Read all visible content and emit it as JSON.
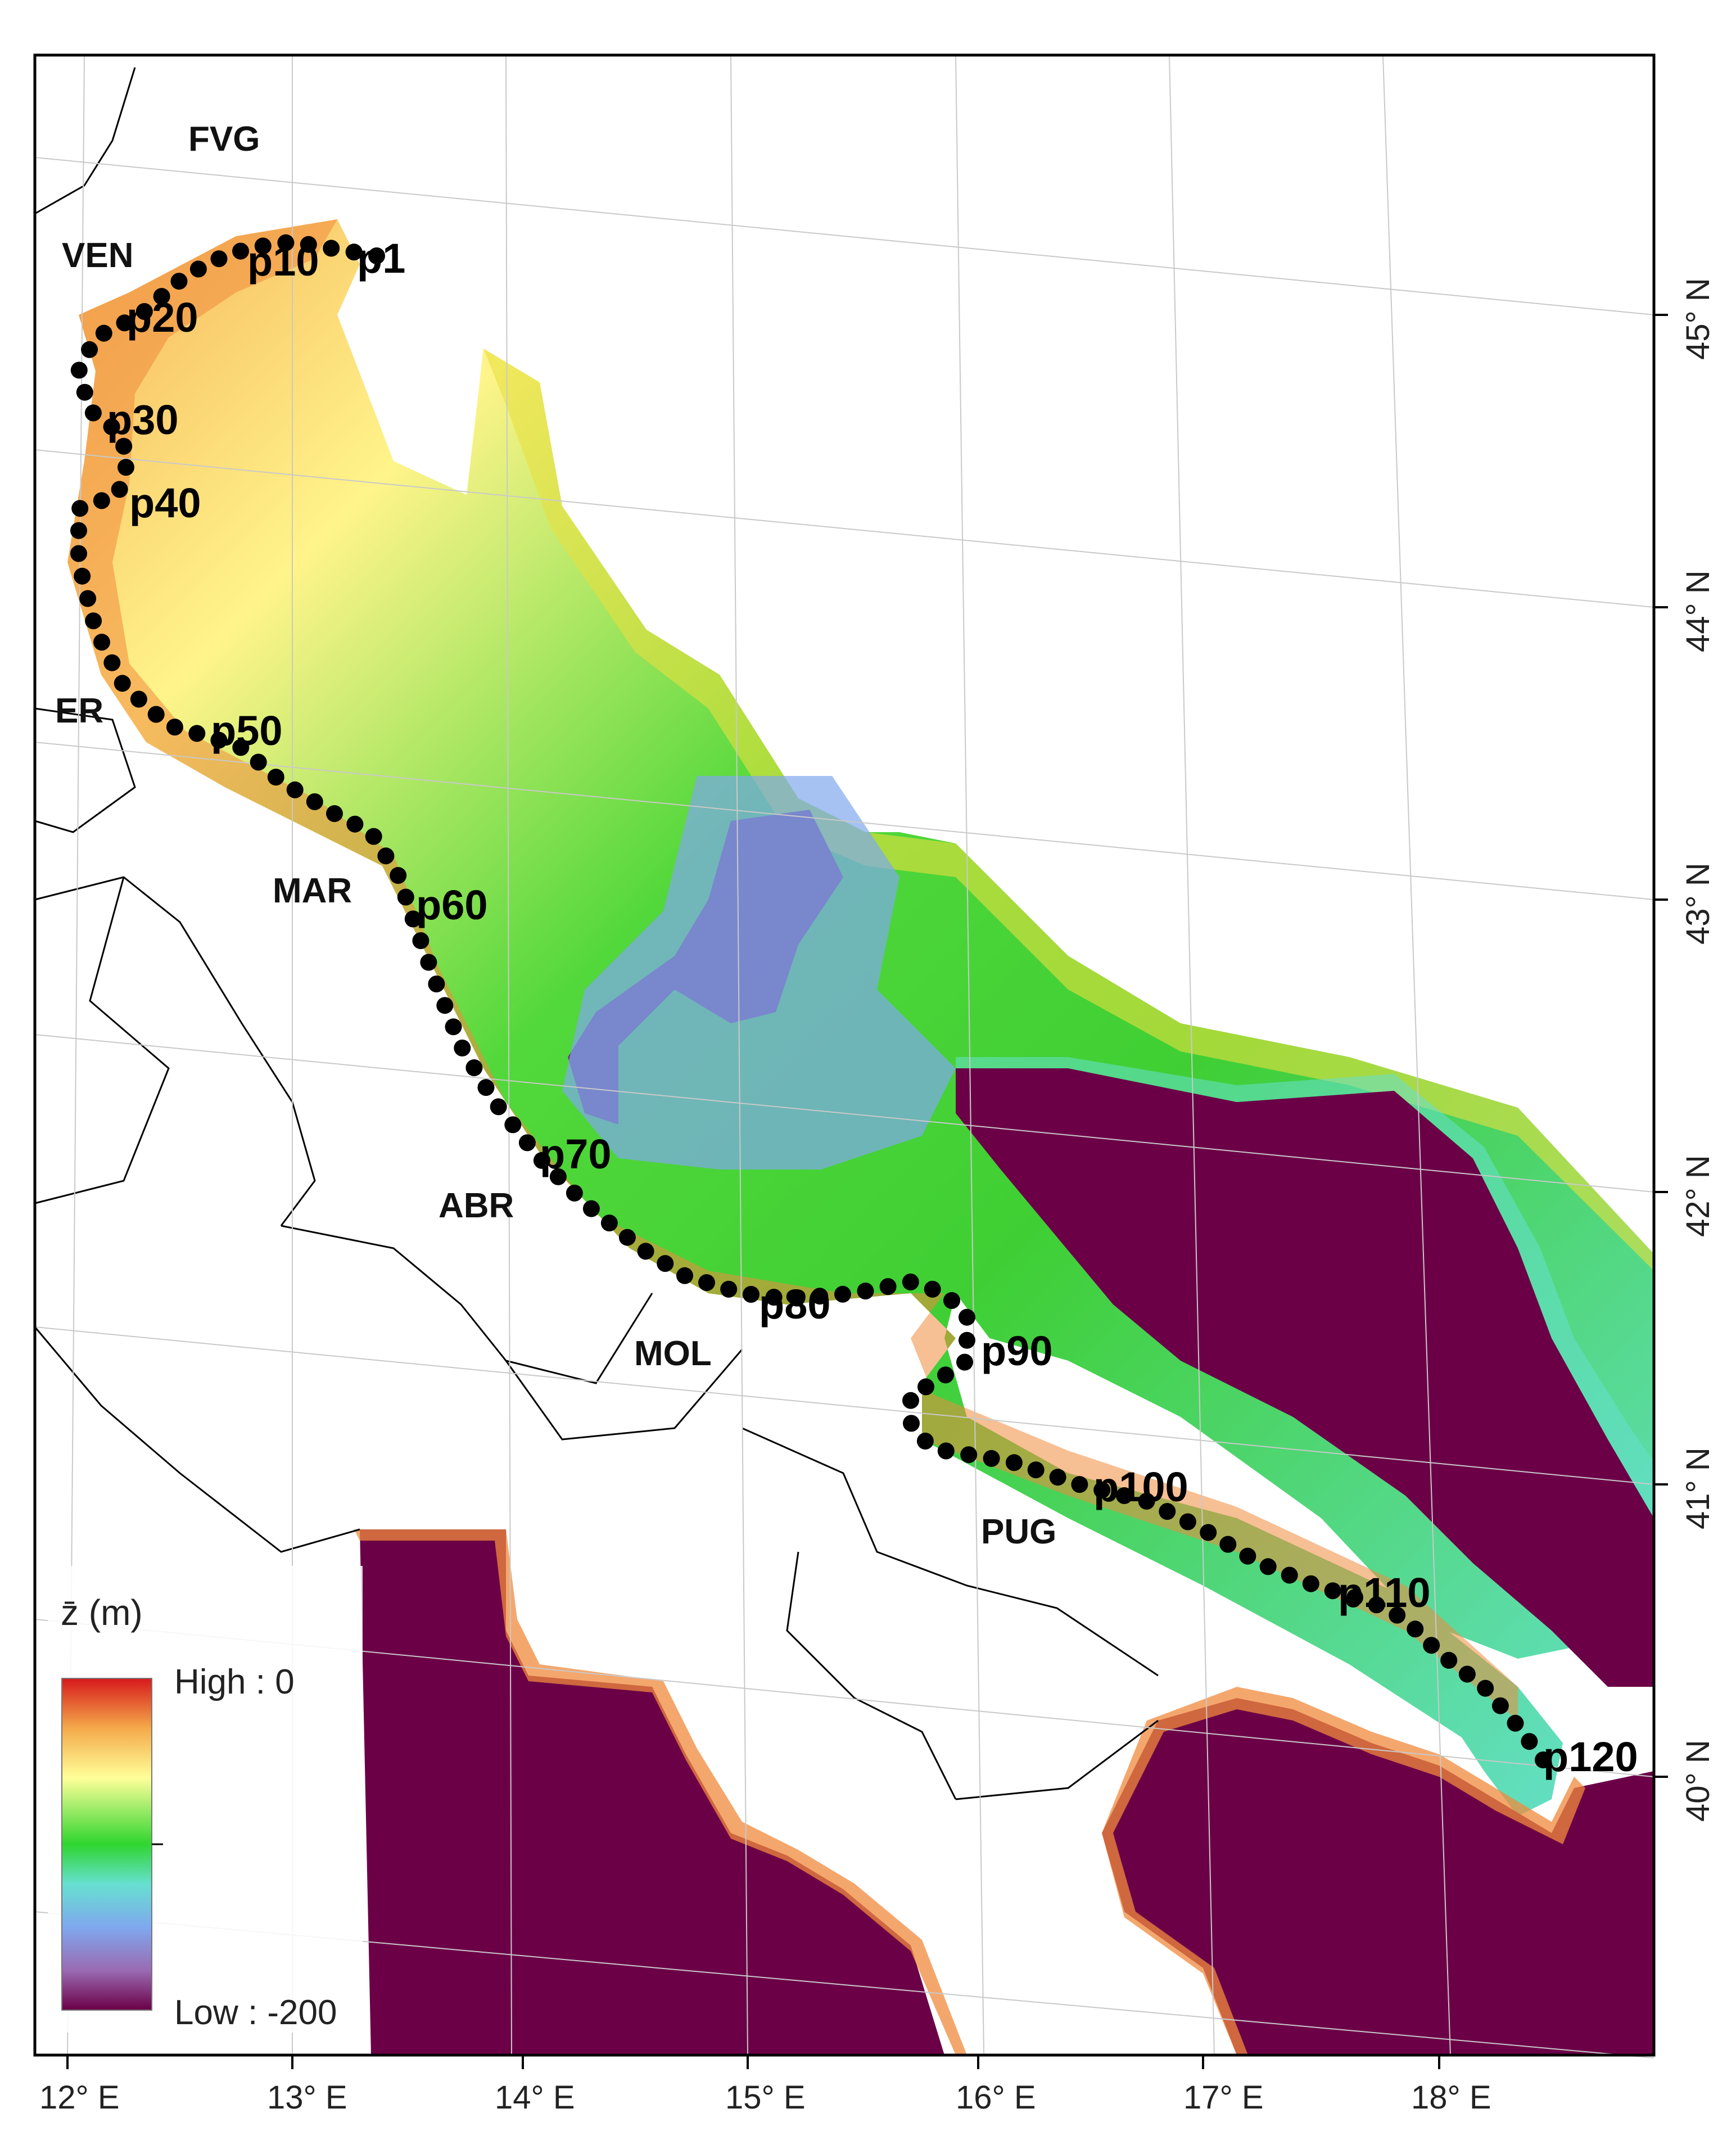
{
  "map": {
    "regions": [
      {
        "id": "fvg",
        "label": "FVG"
      },
      {
        "id": "ven",
        "label": "VEN"
      },
      {
        "id": "er",
        "label": "ER"
      },
      {
        "id": "mar",
        "label": "MAR"
      },
      {
        "id": "abr",
        "label": "ABR"
      },
      {
        "id": "mol",
        "label": "MOL"
      },
      {
        "id": "pug",
        "label": "PUG"
      }
    ],
    "point_labels": [
      "p1",
      "p10",
      "p20",
      "p30",
      "p40",
      "p50",
      "p60",
      "p70",
      "p80",
      "p90",
      "p100",
      "p110",
      "p120"
    ],
    "longitude_ticks": [
      "12° E",
      "13° E",
      "14° E",
      "15° E",
      "16° E",
      "17° E",
      "18° E"
    ],
    "latitude_ticks": [
      "45° N",
      "44° N",
      "43° N",
      "42° N",
      "41° N",
      "40° N"
    ],
    "legend": {
      "title": "z̄ (m)",
      "high_label": "High : 0",
      "low_label": "Low : -200",
      "high_value": 0,
      "low_value": -200,
      "colors": [
        "#d7191c",
        "#f4a94a",
        "#ffff99",
        "#2fd52f",
        "#66e0d0",
        "#7fa8ee",
        "#9a6bb3",
        "#6b0047"
      ]
    },
    "colors": {
      "deep_water": "#6b0047",
      "land": "#ffffff",
      "points": "#000000"
    }
  }
}
